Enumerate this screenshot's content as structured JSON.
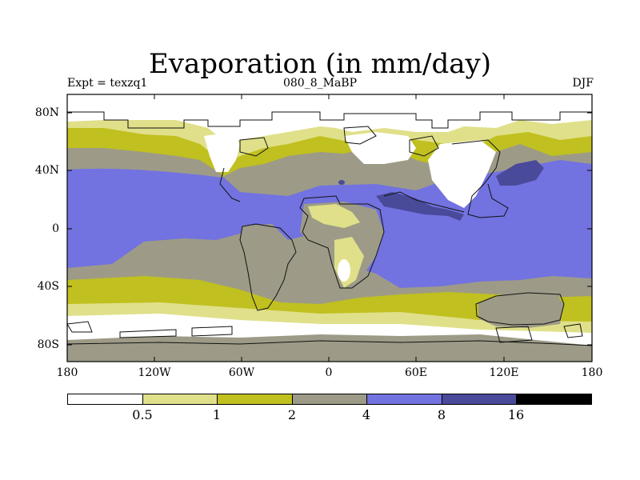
{
  "title": "Evaporation (in mm/day)",
  "subtitle_left": "Expt = texzq1",
  "subtitle_center": "080_8_MaBP",
  "subtitle_right": "DJF",
  "lat_labels": [
    "80N",
    "40N",
    "0",
    "40S",
    "80S"
  ],
  "lon_labels": [
    "180",
    "120W",
    "60W",
    "0",
    "60E",
    "120E",
    "180"
  ],
  "colorbar": {
    "levels": [
      "0.5",
      "1",
      "2",
      "4",
      "8",
      "16"
    ],
    "colors": [
      "#ffffff",
      "#e0e08a",
      "#c0c020",
      "#9d9b87",
      "#7272e0",
      "#4a4a9a",
      "#000000"
    ]
  },
  "map_colors": {
    "lt05": "#ffffff",
    "0.5-1": "#e0e08a",
    "1-2": "#c0c020",
    "2-4": "#9d9b87",
    "4-8": "#7272e0",
    "8-16": "#4a4a9a"
  }
}
